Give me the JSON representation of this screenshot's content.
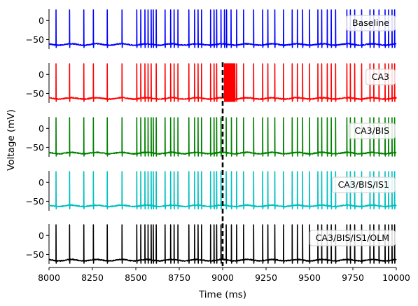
{
  "chart_data": {
    "type": "line",
    "xlabel": "Time (ms)",
    "ylabel": "Voltage (mV)",
    "xlim": [
      8000,
      10000
    ],
    "ylim": [
      -75,
      30
    ],
    "xticks": [
      "8000",
      "8250",
      "8500",
      "8750",
      "9000",
      "9250",
      "9500",
      "9750",
      "10000"
    ],
    "yticks": [
      "0",
      "-50"
    ],
    "marker_x": 9000,
    "legend_position": "right",
    "series": [
      {
        "name": "Baseline",
        "color": "#0000ff",
        "baseline_mv": -63,
        "spike_peak_mv": 28,
        "spike_times": [
          8040,
          8118,
          8200,
          8255,
          8335,
          8420,
          8505,
          8528,
          8552,
          8570,
          8588,
          8600,
          8617,
          8668,
          8700,
          8720,
          8742,
          8805,
          8838,
          8858,
          8878,
          8930,
          8950,
          8965,
          8990,
          9010,
          9022,
          9048,
          9080,
          9120,
          9178,
          9230,
          9260,
          9300,
          9350,
          9400,
          9430,
          9460,
          9500,
          9548,
          9570,
          9602,
          9625,
          9650,
          9715,
          9735,
          9760,
          9800,
          9848,
          9870,
          9900,
          9935,
          9955,
          9975,
          9990
        ]
      },
      {
        "name": "CA3",
        "color": "#ff0000",
        "baseline_mv": -63,
        "spike_peak_mv": 28,
        "spike_times": [
          8040,
          8118,
          8200,
          8255,
          8335,
          8420,
          8505,
          8528,
          8552,
          8570,
          8588,
          8617,
          8668,
          8700,
          8720,
          8742,
          8805,
          8838,
          8858,
          8878,
          8930,
          8950,
          8965,
          9010,
          9015,
          9020,
          9025,
          9030,
          9035,
          9040,
          9045,
          9050,
          9055,
          9060,
          9065,
          9070,
          9080,
          9120,
          9178,
          9230,
          9260,
          9300,
          9350,
          9400,
          9430,
          9460,
          9500,
          9548,
          9570,
          9602,
          9625,
          9650,
          9715,
          9735,
          9760,
          9800,
          9848,
          9870,
          9900,
          9935,
          9955,
          9975,
          9990
        ]
      },
      {
        "name": "CA3/BIS",
        "color": "#008000",
        "baseline_mv": -65,
        "spike_peak_mv": 28,
        "spike_times": [
          8040,
          8118,
          8200,
          8255,
          8335,
          8420,
          8505,
          8528,
          8552,
          8570,
          8588,
          8600,
          8617,
          8668,
          8700,
          8720,
          8742,
          8805,
          8838,
          8858,
          8878,
          8930,
          8950,
          8965,
          8990,
          9020,
          9050,
          9080,
          9120,
          9178,
          9230,
          9260,
          9300,
          9350,
          9400,
          9430,
          9460,
          9500,
          9548,
          9570,
          9602,
          9625,
          9650,
          9715,
          9735,
          9760,
          9800,
          9848,
          9870,
          9900,
          9935,
          9955,
          9975,
          9990
        ]
      },
      {
        "name": "CA3/BIS/IS1",
        "color": "#00bfbf",
        "baseline_mv": -62,
        "spike_peak_mv": 28,
        "spike_times": [
          8040,
          8118,
          8200,
          8255,
          8335,
          8420,
          8505,
          8528,
          8552,
          8570,
          8588,
          8600,
          8617,
          8668,
          8700,
          8720,
          8742,
          8805,
          8838,
          8858,
          8878,
          8930,
          8950,
          8965,
          8990,
          9020,
          9050,
          9080,
          9120,
          9178,
          9230,
          9260,
          9300,
          9350,
          9400,
          9430,
          9460,
          9500,
          9548,
          9570,
          9602,
          9625,
          9650,
          9715,
          9735,
          9760,
          9800,
          9848,
          9870,
          9900,
          9935,
          9955,
          9975,
          9990
        ]
      },
      {
        "name": "CA3/BIS/IS1/OLM",
        "color": "#000000",
        "baseline_mv": -65,
        "spike_peak_mv": 28,
        "spike_times": [
          8040,
          8118,
          8200,
          8255,
          8335,
          8420,
          8505,
          8528,
          8552,
          8570,
          8588,
          8600,
          8617,
          8668,
          8700,
          8720,
          8742,
          8805,
          8838,
          8858,
          8878,
          8930,
          8950,
          8965,
          8990,
          9020,
          9050,
          9080,
          9120,
          9178,
          9230,
          9260,
          9300,
          9350,
          9400,
          9430,
          9460,
          9500,
          9548,
          9570,
          9602,
          9625,
          9650,
          9715,
          9735,
          9760,
          9800,
          9848,
          9870,
          9900,
          9935,
          9955,
          9975,
          9990
        ]
      }
    ]
  }
}
